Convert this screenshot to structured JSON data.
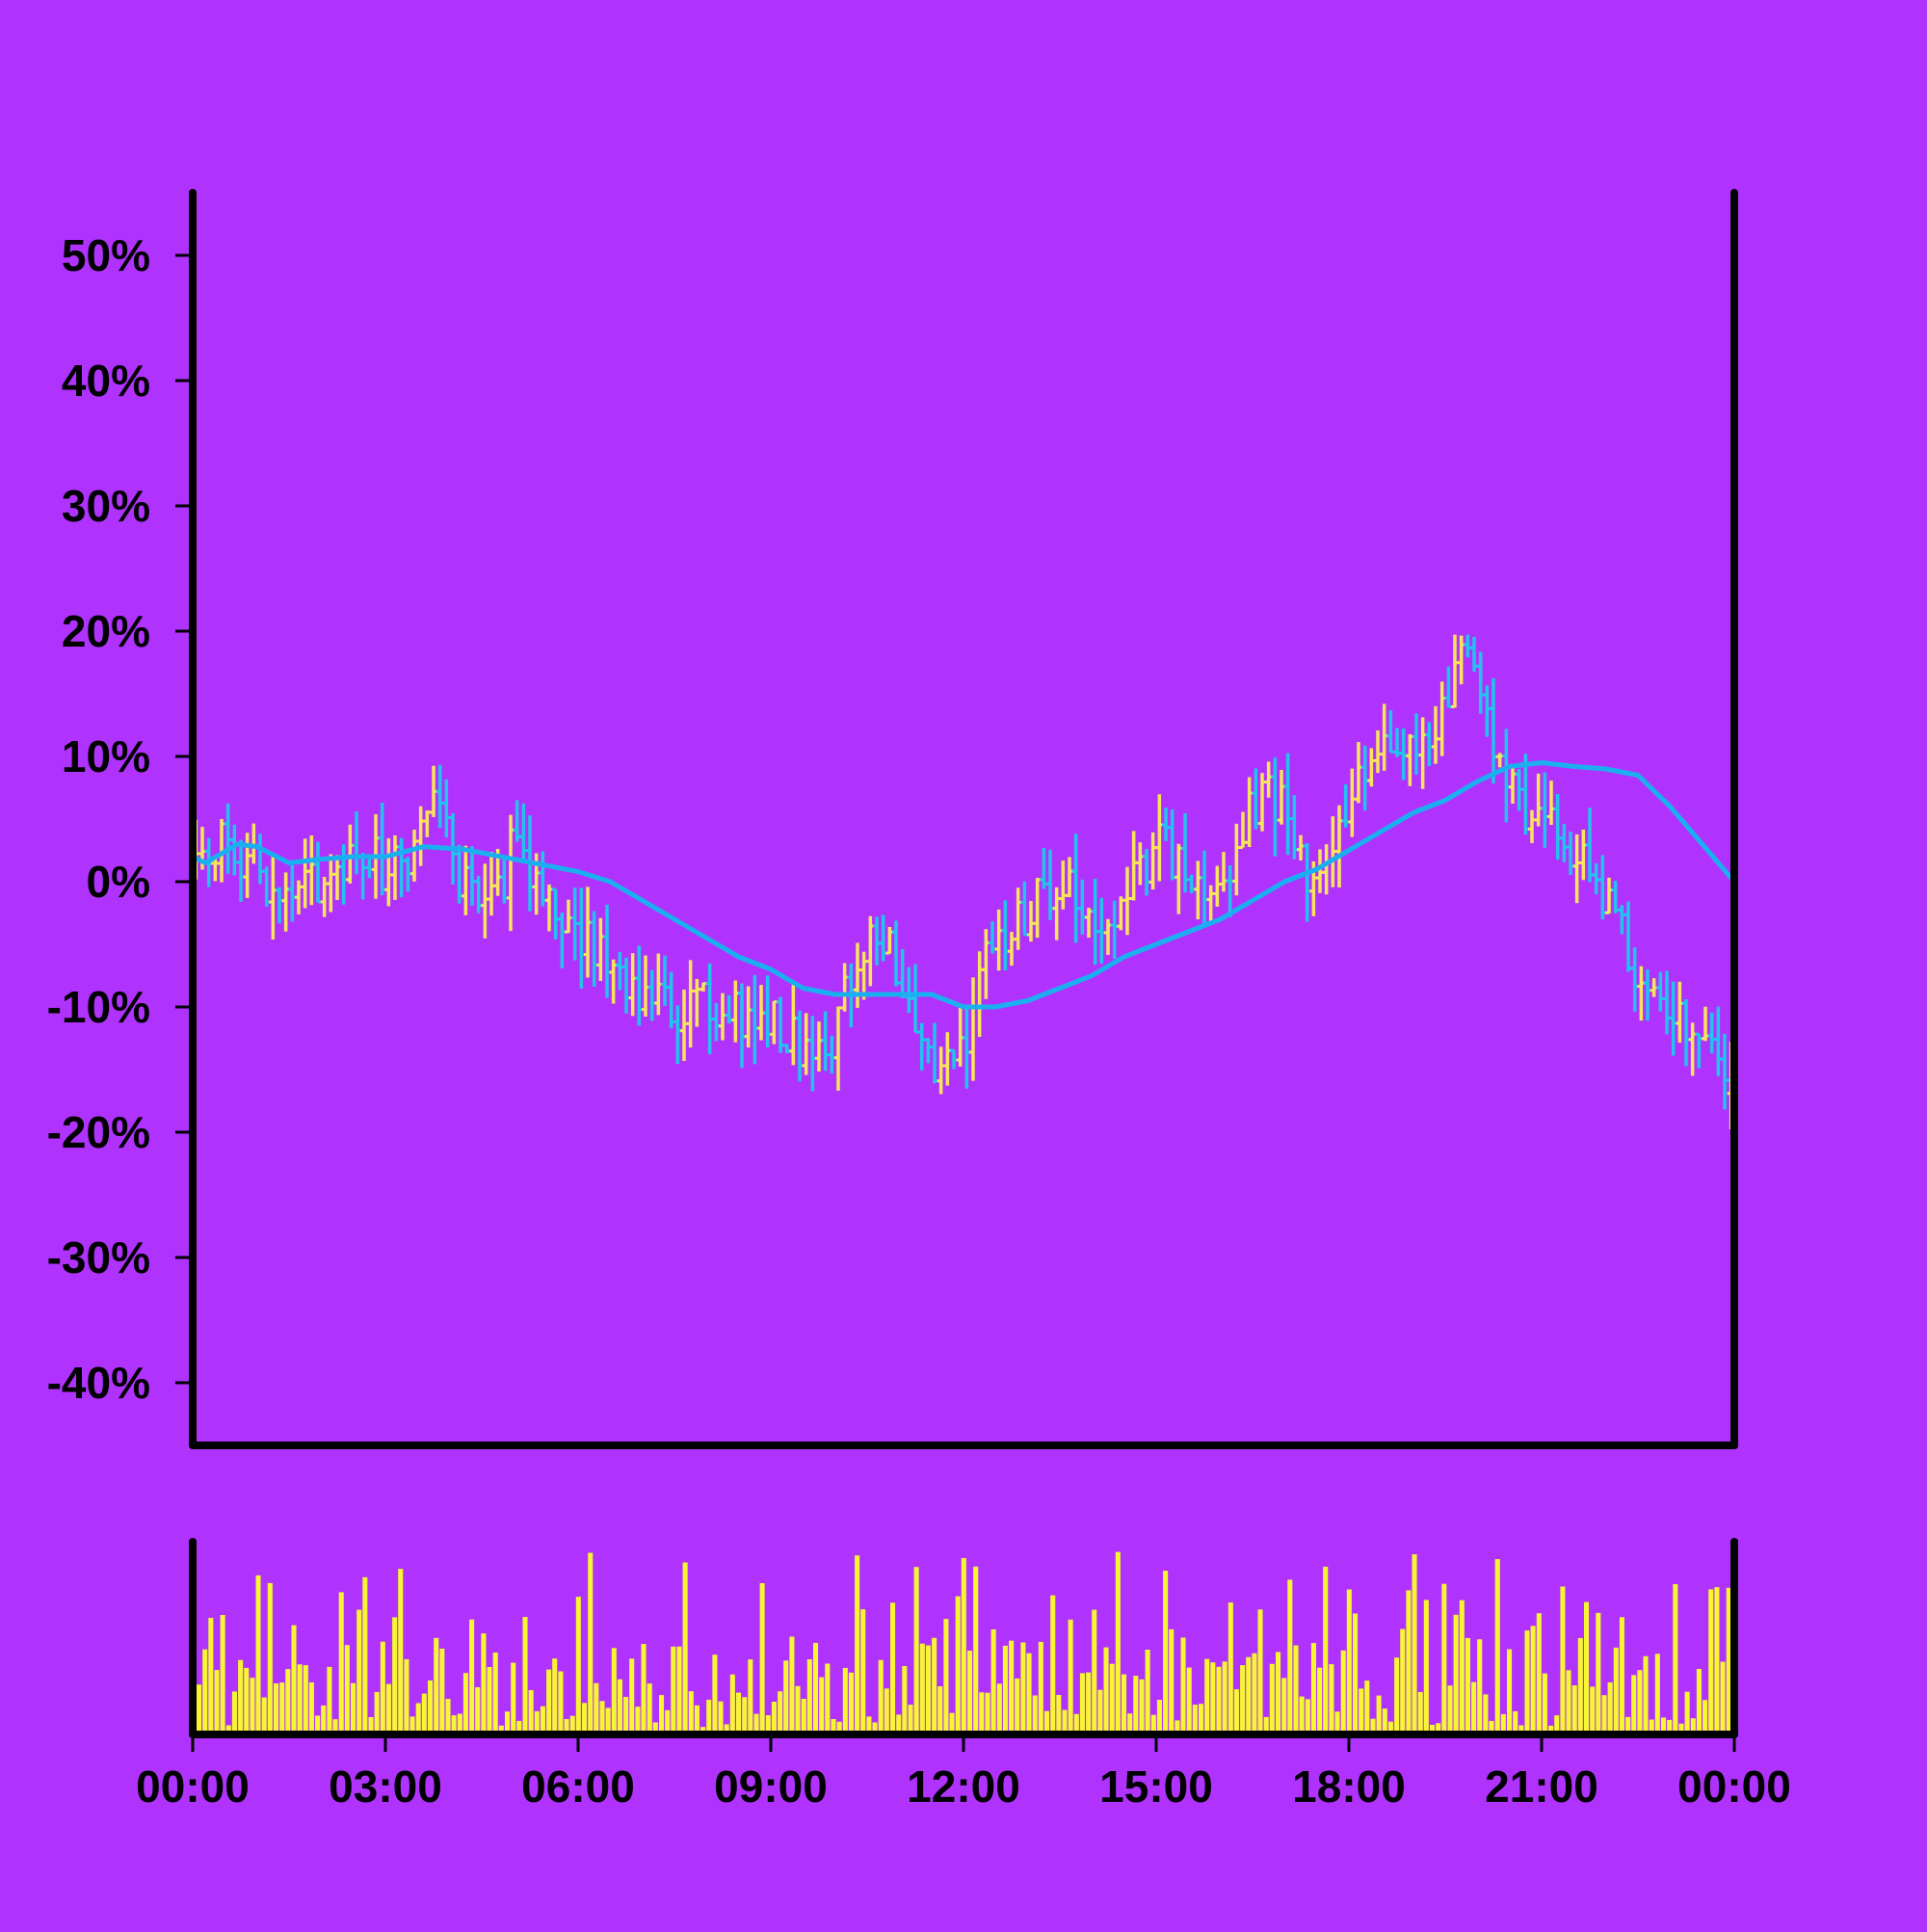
{
  "colors": {
    "background": "#b033fd",
    "up_bar": "#f9e45a",
    "down_bar": "#22c3ee",
    "moving_average": "#1ab0f0",
    "volume": "#f8f632",
    "axis": "#000000"
  },
  "chart_data": {
    "type": "ohlc",
    "y_axis": {
      "format": "percent",
      "ylim": [
        -45,
        55
      ],
      "ticks": [
        "50%",
        "40%",
        "30%",
        "20%",
        "10%",
        "0%",
        "-10%",
        "-20%",
        "-30%",
        "-40%"
      ],
      "tick_values": [
        50,
        40,
        30,
        20,
        10,
        0,
        -10,
        -20,
        -30,
        -40
      ]
    },
    "x_axis": {
      "ticks": [
        "00:00",
        "03:00",
        "06:00",
        "09:00",
        "12:00",
        "15:00",
        "18:00",
        "21:00",
        "00:00"
      ],
      "tick_hours": [
        0,
        3,
        6,
        9,
        12,
        15,
        18,
        21,
        24
      ]
    },
    "grid": false,
    "legend": "none",
    "bar_interval_minutes": 6,
    "price_anchors": [
      [
        0,
        2
      ],
      [
        0.5,
        3
      ],
      [
        1,
        1
      ],
      [
        1.4,
        -2
      ],
      [
        1.7,
        -1
      ],
      [
        2,
        0
      ],
      [
        2.5,
        3
      ],
      [
        3,
        1
      ],
      [
        3.5,
        3
      ],
      [
        3.7,
        7
      ],
      [
        4.2,
        0
      ],
      [
        4.7,
        -2
      ],
      [
        5,
        3
      ],
      [
        5.6,
        -2
      ],
      [
        6,
        -4
      ],
      [
        6.5,
        -7
      ],
      [
        7,
        -9
      ],
      [
        7.5,
        -10
      ],
      [
        8,
        -9
      ],
      [
        8.5,
        -11
      ],
      [
        9,
        -11
      ],
      [
        9.5,
        -13
      ],
      [
        10,
        -12
      ],
      [
        10.3,
        -6
      ],
      [
        10.8,
        -5
      ],
      [
        11.2,
        -11
      ],
      [
        11.5,
        -16
      ],
      [
        12,
        -13
      ],
      [
        12.3,
        -6
      ],
      [
        13,
        -3
      ],
      [
        13.5,
        1
      ],
      [
        14,
        -4
      ],
      [
        14.5,
        -1
      ],
      [
        15,
        3
      ],
      [
        15.5,
        1
      ],
      [
        16,
        -1
      ],
      [
        16.5,
        6
      ],
      [
        17,
        7
      ],
      [
        17.3,
        0
      ],
      [
        17.6,
        0
      ],
      [
        18,
        6
      ],
      [
        18.5,
        12
      ],
      [
        19,
        12
      ],
      [
        19.5,
        13
      ],
      [
        19.8,
        18
      ],
      [
        20,
        15
      ],
      [
        20.5,
        7
      ],
      [
        21,
        5
      ],
      [
        21.5,
        3
      ],
      [
        22,
        -1
      ],
      [
        22.5,
        -7
      ],
      [
        23,
        -11
      ],
      [
        23.5,
        -13
      ],
      [
        23.8,
        -14
      ],
      [
        24,
        -17
      ]
    ],
    "moving_average": [
      [
        0,
        2
      ],
      [
        0.2,
        1.5
      ],
      [
        0.7,
        3
      ],
      [
        1,
        2.8
      ],
      [
        1.5,
        1.5
      ],
      [
        2,
        1.8
      ],
      [
        2.5,
        2
      ],
      [
        3,
        2
      ],
      [
        3.6,
        2.8
      ],
      [
        4.2,
        2.6
      ],
      [
        5,
        1.8
      ],
      [
        5.6,
        1.2
      ],
      [
        6,
        0.8
      ],
      [
        6.5,
        0
      ],
      [
        7,
        -1.5
      ],
      [
        7.5,
        -3
      ],
      [
        8,
        -4.5
      ],
      [
        8.5,
        -6
      ],
      [
        9,
        -7
      ],
      [
        9.5,
        -8.5
      ],
      [
        10,
        -9
      ],
      [
        10.5,
        -9
      ],
      [
        11,
        -9
      ],
      [
        11.5,
        -9
      ],
      [
        12,
        -10
      ],
      [
        12.5,
        -10
      ],
      [
        13,
        -9.5
      ],
      [
        13.5,
        -8.5
      ],
      [
        14,
        -7.5
      ],
      [
        14.5,
        -6
      ],
      [
        15,
        -5
      ],
      [
        15.5,
        -4
      ],
      [
        16,
        -3
      ],
      [
        16.5,
        -1.5
      ],
      [
        17,
        0
      ],
      [
        17.5,
        1
      ],
      [
        18,
        2.5
      ],
      [
        18.5,
        4
      ],
      [
        19,
        5.5
      ],
      [
        19.5,
        6.5
      ],
      [
        20,
        8
      ],
      [
        20.5,
        9.2
      ],
      [
        21,
        9.5
      ],
      [
        21.5,
        9.2
      ],
      [
        22,
        9
      ],
      [
        22.5,
        8.5
      ],
      [
        23,
        6
      ],
      [
        23.5,
        3
      ],
      [
        24,
        0
      ]
    ],
    "volume": {
      "baseline_fraction": 0.35,
      "peak_fraction": 0.95
    }
  }
}
